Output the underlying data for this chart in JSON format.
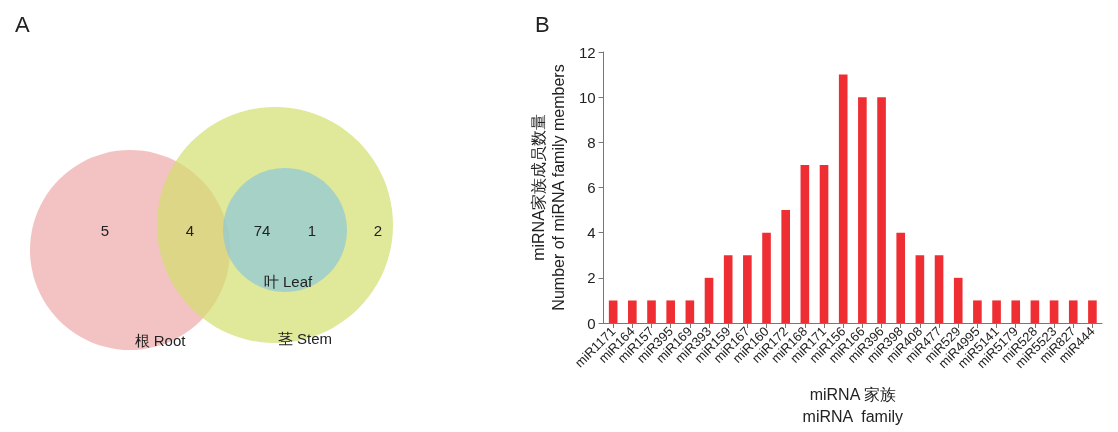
{
  "chart_data": [
    {
      "type": "other",
      "title": "A",
      "categories": [
        "根 Root",
        "茎 Stem",
        "叶 Leaf"
      ],
      "colors": [
        "#eea9a9",
        "#d3de6e",
        "#8cc7d8"
      ],
      "annotations": [
        "5",
        "4",
        "74",
        "1",
        "2"
      ]
    },
    {
      "type": "bar",
      "title": "B",
      "xlabel": "miRNA 家族\nmiRNA  family",
      "ylabel": "miRNA家族成员数量\nNumber of miRNA family members",
      "categories": [
        "miR1171",
        "miR164",
        "miR157",
        "miR395",
        "miR169",
        "miR393",
        "miR159",
        "miR167",
        "miR160",
        "miR172",
        "miR168",
        "miR171",
        "miR156",
        "miR166",
        "miR396",
        "miR398",
        "miR408",
        "miR477",
        "miR529",
        "miR4995",
        "miR5141",
        "miR5179",
        "miR528",
        "miR5523",
        "miR827",
        "miR444"
      ],
      "values": [
        1,
        1,
        1,
        1,
        1,
        2,
        3,
        3,
        4,
        5,
        7,
        7,
        11,
        10,
        10,
        4,
        3,
        3,
        2,
        1,
        1,
        1,
        1,
        1,
        1,
        1
      ],
      "color": "#ee2e33",
      "ylim": [
        0,
        12
      ],
      "yticks": [
        0,
        2,
        4,
        6,
        8,
        10,
        12
      ],
      "grid": false
    }
  ]
}
